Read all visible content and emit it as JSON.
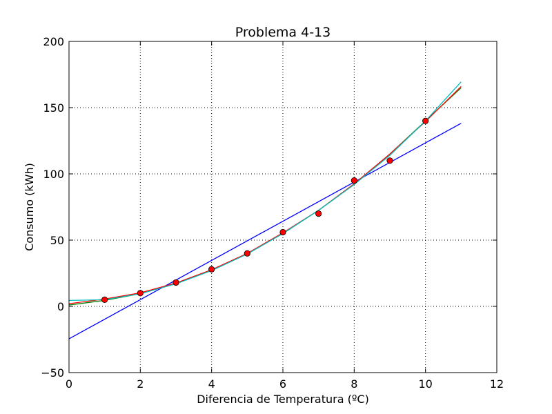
{
  "chart_data": {
    "type": "line",
    "title": "Problema 4-13",
    "xlabel": "Diferencia de Temperatura (ºC)",
    "ylabel": "Consumo (kWh)",
    "xlim": [
      0,
      12
    ],
    "ylim": [
      -50,
      200
    ],
    "xticks": [
      0,
      2,
      4,
      6,
      8,
      10,
      12
    ],
    "yticks": [
      -50,
      0,
      50,
      100,
      150,
      200
    ],
    "xtick_labels": [
      "0",
      "2",
      "4",
      "6",
      "8",
      "10",
      "12"
    ],
    "ytick_labels": [
      "−50",
      "0",
      "50",
      "100",
      "150",
      "200"
    ],
    "grid": true,
    "points": {
      "marker": "circle",
      "color": "#ff0000",
      "x": [
        1,
        2,
        3,
        4,
        5,
        6,
        7,
        8,
        9,
        10
      ],
      "y": [
        5,
        10,
        18,
        28,
        40,
        56,
        70,
        95,
        110,
        140
      ]
    },
    "series": [
      {
        "color": "#0000ff",
        "x": [
          0,
          11
        ],
        "y": [
          -24.5,
          138.2
        ]
      },
      {
        "color": "#008000",
        "x": [
          0,
          1,
          2,
          3,
          4,
          5,
          6,
          7,
          8,
          9,
          10,
          11
        ],
        "y": [
          1,
          4.5,
          9.6,
          17.5,
          27.5,
          39.7,
          55,
          72.5,
          92,
          115,
          140,
          165
        ]
      },
      {
        "color": "#ff0000",
        "x": [
          0,
          1,
          2,
          3,
          4,
          5,
          6,
          7,
          8,
          9,
          10,
          11
        ],
        "y": [
          2,
          5.5,
          10.2,
          17.6,
          27.6,
          40,
          55.5,
          72.5,
          92.5,
          115,
          139.5,
          166
        ]
      },
      {
        "color": "#00bfbf",
        "x": [
          0,
          1,
          2,
          3,
          4,
          5,
          6,
          7,
          8,
          9,
          10,
          11
        ],
        "y": [
          4.5,
          5,
          9.5,
          17,
          27,
          39.5,
          55,
          72.5,
          92,
          114,
          140,
          169.5
        ]
      }
    ]
  }
}
